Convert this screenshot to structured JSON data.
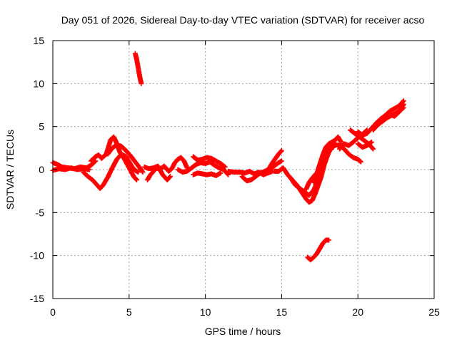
{
  "chart_data": {
    "type": "scatter",
    "title": "Day 051 of 2026, Sidereal Day-to-day VTEC variation (SDTVAR) for receiver acso",
    "xlabel": "GPS time / hours",
    "ylabel": "SDTVAR / TECUs",
    "xlim": [
      0,
      25
    ],
    "ylim": [
      -15,
      15
    ],
    "xticks": [
      0,
      5,
      10,
      15,
      20,
      25
    ],
    "yticks": [
      -15,
      -10,
      -5,
      0,
      5,
      10,
      15
    ],
    "xtick_labels": [
      "0",
      "5",
      "10",
      "15",
      "20",
      "25"
    ],
    "ytick_labels": [
      "-15",
      "-10",
      "-5",
      "0",
      "5",
      "10",
      "15"
    ],
    "grid": true,
    "legend": "none",
    "marker": "+",
    "series": [
      {
        "name": "SDTVAR",
        "color": "#ff0000",
        "tracks": [
          [
            [
              0.0,
              0.8
            ],
            [
              0.3,
              0.6
            ],
            [
              0.6,
              0.3
            ],
            [
              1.0,
              0.2
            ],
            [
              1.4,
              0.1
            ],
            [
              1.8,
              0.3
            ],
            [
              2.2,
              0.2
            ],
            [
              2.5,
              0.5
            ],
            [
              2.8,
              1.0
            ]
          ],
          [
            [
              0.0,
              -0.1
            ],
            [
              0.4,
              0.1
            ],
            [
              0.8,
              0.0
            ],
            [
              1.2,
              0.2
            ],
            [
              1.6,
              0.0
            ],
            [
              2.0,
              0.1
            ],
            [
              2.4,
              0.0
            ]
          ],
          [
            [
              2.0,
              -0.3
            ],
            [
              2.3,
              -0.8
            ],
            [
              2.6,
              -1.2
            ],
            [
              2.9,
              -1.8
            ],
            [
              3.1,
              -2.2
            ],
            [
              3.3,
              -1.8
            ],
            [
              3.6,
              -0.9
            ],
            [
              3.9,
              0.2
            ],
            [
              4.2,
              1.2
            ],
            [
              4.5,
              1.8
            ],
            [
              4.8,
              1.5
            ],
            [
              5.0,
              0.9
            ],
            [
              5.2,
              0.3
            ],
            [
              5.4,
              -0.1
            ],
            [
              5.6,
              -0.3
            ]
          ],
          [
            [
              2.5,
              1.0
            ],
            [
              2.8,
              1.5
            ],
            [
              3.0,
              1.7
            ],
            [
              3.2,
              1.3
            ],
            [
              3.5,
              1.8
            ],
            [
              3.8,
              3.5
            ],
            [
              4.0,
              3.8
            ],
            [
              4.2,
              3.0
            ],
            [
              4.4,
              2.0
            ],
            [
              4.7,
              1.2
            ],
            [
              5.0,
              0.2
            ],
            [
              5.3,
              -0.8
            ],
            [
              5.5,
              -1.2
            ]
          ],
          [
            [
              3.6,
              1.8
            ],
            [
              3.9,
              2.5
            ],
            [
              4.2,
              2.9
            ],
            [
              4.5,
              2.7
            ],
            [
              4.8,
              2.2
            ],
            [
              5.1,
              1.6
            ],
            [
              5.4,
              0.9
            ],
            [
              5.7,
              0.2
            ],
            [
              5.9,
              -0.3
            ]
          ],
          [
            [
              5.4,
              13.5
            ],
            [
              5.5,
              12.8
            ],
            [
              5.6,
              11.8
            ],
            [
              5.7,
              10.8
            ],
            [
              5.8,
              10.0
            ]
          ],
          [
            [
              6.2,
              -1.2
            ],
            [
              6.4,
              -0.6
            ],
            [
              6.6,
              -0.2
            ],
            [
              6.8,
              0.2
            ],
            [
              7.0,
              0.0
            ],
            [
              7.3,
              0.4
            ],
            [
              7.6,
              -0.2
            ],
            [
              7.8,
              0.1
            ],
            [
              8.0,
              0.8
            ],
            [
              8.2,
              1.2
            ],
            [
              8.4,
              1.4
            ],
            [
              8.6,
              1.0
            ],
            [
              8.8,
              0.2
            ]
          ],
          [
            [
              6.0,
              0.3
            ],
            [
              6.3,
              0.1
            ],
            [
              6.6,
              0.2
            ],
            [
              6.9,
              0.4
            ],
            [
              7.2,
              -0.6
            ],
            [
              7.5,
              -1.2
            ],
            [
              7.7,
              -0.8
            ]
          ],
          [
            [
              8.2,
              0.0
            ],
            [
              8.5,
              -0.3
            ],
            [
              8.8,
              -0.2
            ],
            [
              9.1,
              0.2
            ],
            [
              9.4,
              0.6
            ],
            [
              9.7,
              0.8
            ],
            [
              10.0,
              0.7
            ],
            [
              10.3,
              0.9
            ],
            [
              10.6,
              0.5
            ],
            [
              10.9,
              0.2
            ],
            [
              11.2,
              0.0
            ],
            [
              11.5,
              -0.6
            ]
          ],
          [
            [
              9.2,
              1.5
            ],
            [
              9.5,
              1.1
            ],
            [
              9.8,
              1.2
            ],
            [
              10.1,
              1.4
            ],
            [
              10.4,
              1.3
            ],
            [
              10.7,
              1.0
            ],
            [
              11.0,
              0.7
            ],
            [
              11.3,
              0.3
            ]
          ],
          [
            [
              9.2,
              -0.6
            ],
            [
              9.5,
              -0.4
            ],
            [
              9.8,
              -0.5
            ],
            [
              10.1,
              -0.6
            ],
            [
              10.4,
              -0.5
            ],
            [
              10.7,
              -0.7
            ],
            [
              11.0,
              -0.4
            ]
          ],
          [
            [
              11.5,
              -0.2
            ],
            [
              11.9,
              -0.3
            ],
            [
              12.3,
              -0.3
            ],
            [
              12.6,
              -0.4
            ],
            [
              12.9,
              -0.2
            ],
            [
              13.2,
              -0.5
            ],
            [
              13.5,
              -0.3
            ],
            [
              13.8,
              -0.6
            ],
            [
              14.1,
              -0.4
            ],
            [
              14.4,
              -0.2
            ]
          ],
          [
            [
              12.4,
              -0.8
            ],
            [
              12.7,
              -1.3
            ],
            [
              13.0,
              -1.2
            ],
            [
              13.3,
              -0.8
            ],
            [
              13.6,
              -0.4
            ],
            [
              13.9,
              -0.2
            ],
            [
              14.2,
              0.1
            ],
            [
              14.5,
              0.4
            ],
            [
              14.8,
              0.8
            ],
            [
              15.0,
              1.0
            ]
          ],
          [
            [
              14.2,
              0.2
            ],
            [
              14.4,
              0.8
            ],
            [
              14.6,
              1.3
            ],
            [
              14.8,
              1.8
            ],
            [
              15.0,
              2.2
            ]
          ],
          [
            [
              14.5,
              -0.2
            ],
            [
              14.8,
              -0.2
            ],
            [
              15.1,
              0.2
            ],
            [
              15.4,
              -0.6
            ],
            [
              15.7,
              -1.2
            ],
            [
              16.0,
              -1.8
            ],
            [
              16.3,
              -2.6
            ],
            [
              16.6,
              -3.4
            ],
            [
              16.8,
              -3.8
            ],
            [
              17.0,
              -3.6
            ],
            [
              17.2,
              -2.8
            ],
            [
              17.4,
              -1.8
            ],
            [
              17.6,
              -0.8
            ],
            [
              17.8,
              0.6
            ],
            [
              18.0,
              1.6
            ],
            [
              18.2,
              2.4
            ],
            [
              18.4,
              2.6
            ]
          ],
          [
            [
              15.6,
              -1.0
            ],
            [
              15.9,
              -1.8
            ],
            [
              16.2,
              -2.2
            ],
            [
              16.5,
              -2.6
            ],
            [
              16.8,
              -3.0
            ],
            [
              17.1,
              -2.4
            ],
            [
              17.4,
              -1.2
            ],
            [
              17.7,
              0.2
            ],
            [
              17.9,
              1.6
            ],
            [
              18.2,
              2.6
            ],
            [
              18.5,
              2.9
            ],
            [
              18.8,
              2.8
            ],
            [
              19.1,
              2.4
            ],
            [
              19.4,
              1.8
            ],
            [
              19.7,
              1.4
            ],
            [
              20.0,
              1.2
            ],
            [
              20.2,
              0.9
            ]
          ],
          [
            [
              16.6,
              -2.3
            ],
            [
              16.8,
              -1.5
            ],
            [
              17.0,
              -1.0
            ],
            [
              17.2,
              -0.6
            ],
            [
              17.4,
              -0.2
            ],
            [
              17.6,
              0.6
            ],
            [
              17.8,
              1.2
            ],
            [
              18.0,
              1.6
            ]
          ],
          [
            [
              17.1,
              -1.5
            ],
            [
              17.3,
              -0.5
            ],
            [
              17.5,
              0.6
            ],
            [
              17.7,
              1.7
            ],
            [
              17.9,
              2.6
            ],
            [
              18.1,
              3.0
            ],
            [
              18.3,
              3.2
            ],
            [
              18.5,
              3.4
            ],
            [
              18.7,
              3.8
            ],
            [
              18.9,
              3.2
            ]
          ],
          [
            [
              16.7,
              -10.2
            ],
            [
              16.9,
              -10.5
            ],
            [
              17.1,
              -10.2
            ],
            [
              17.3,
              -9.8
            ],
            [
              17.5,
              -9.2
            ],
            [
              17.7,
              -8.6
            ],
            [
              17.9,
              -8.2
            ],
            [
              18.1,
              -8.2
            ]
          ],
          [
            [
              18.8,
              2.4
            ],
            [
              19.1,
              3.0
            ],
            [
              19.4,
              2.8
            ],
            [
              19.7,
              3.2
            ],
            [
              20.0,
              3.7
            ],
            [
              20.3,
              4.1
            ],
            [
              20.6,
              4.6
            ]
          ],
          [
            [
              19.5,
              4.6
            ],
            [
              19.8,
              4.2
            ],
            [
              20.1,
              3.8
            ],
            [
              20.4,
              3.4
            ],
            [
              20.7,
              3.0
            ],
            [
              21.0,
              2.4
            ]
          ],
          [
            [
              20.0,
              3.0
            ],
            [
              20.3,
              2.6
            ],
            [
              20.6,
              2.8
            ],
            [
              20.9,
              3.2
            ]
          ],
          [
            [
              20.0,
              4.4
            ],
            [
              20.3,
              4.0
            ],
            [
              20.6,
              4.2
            ],
            [
              20.9,
              4.8
            ],
            [
              21.2,
              5.4
            ],
            [
              21.5,
              5.9
            ],
            [
              21.8,
              6.3
            ],
            [
              22.1,
              6.8
            ],
            [
              22.4,
              7.1
            ],
            [
              22.7,
              7.4
            ],
            [
              23.0,
              8.0
            ]
          ],
          [
            [
              21.0,
              4.6
            ],
            [
              21.3,
              5.2
            ],
            [
              21.6,
              5.6
            ],
            [
              21.9,
              6.0
            ],
            [
              22.2,
              6.3
            ],
            [
              22.5,
              6.6
            ],
            [
              22.8,
              6.9
            ],
            [
              23.0,
              7.2
            ]
          ],
          [
            [
              21.5,
              5.6
            ],
            [
              21.8,
              6.0
            ],
            [
              22.1,
              6.4
            ],
            [
              22.4,
              6.2
            ],
            [
              22.7,
              6.7
            ],
            [
              23.0,
              7.6
            ]
          ]
        ]
      }
    ]
  }
}
